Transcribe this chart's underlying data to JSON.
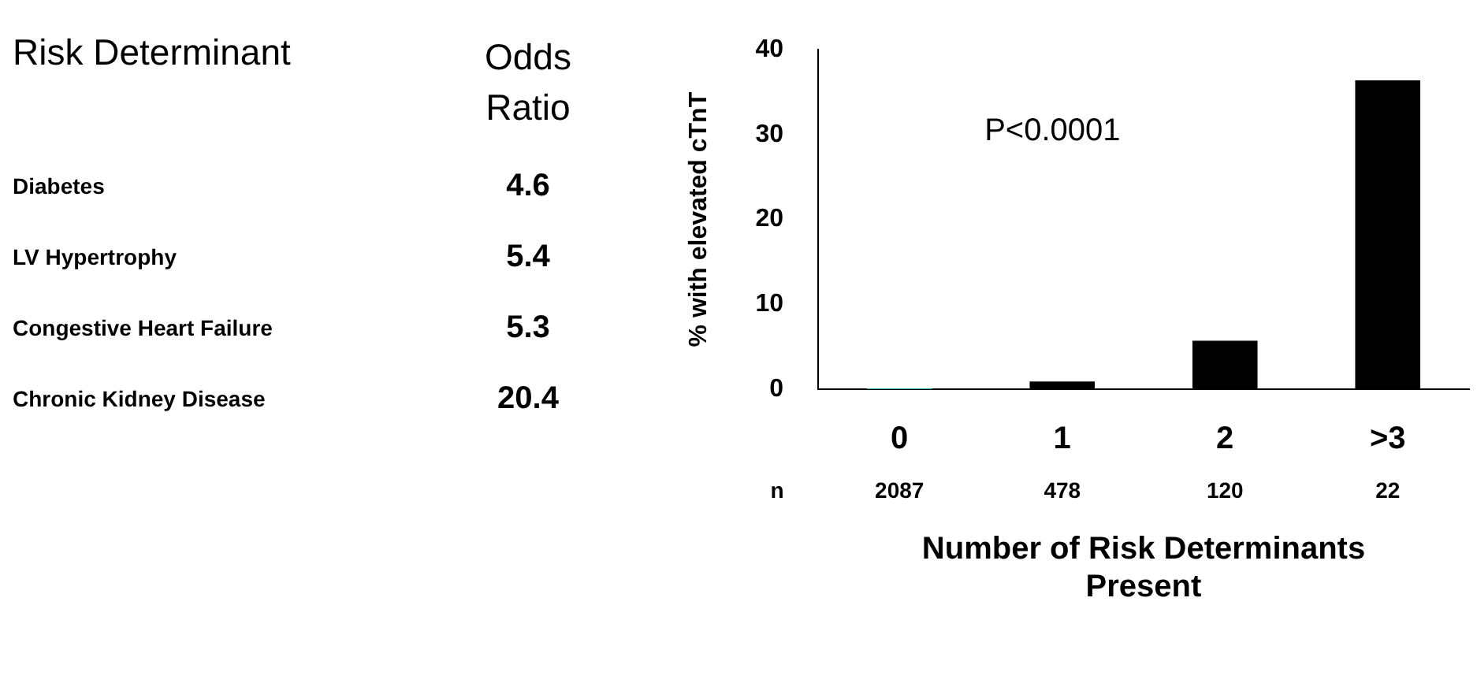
{
  "chart_data": [
    {
      "type": "other",
      "annotations": [
        "Risk Determinant",
        "Odds Ratio",
        "Diabetes",
        "4.6",
        "LV Hypertrophy",
        "5.4",
        "Congestive Heart Failure",
        "5.3",
        "Chronic Kidney Disease",
        "20.4"
      ]
    },
    {
      "type": "bar",
      "categories": [
        "0",
        "1",
        "2",
        ">3"
      ],
      "values": [
        0.1,
        0.9,
        5.7,
        36.4
      ],
      "colors": [
        "#2ab0b0",
        "#000000",
        "#000000",
        "#000000"
      ],
      "ylim": [
        0,
        40
      ],
      "yticks": [
        0,
        10,
        20,
        30,
        40
      ],
      "grid": false,
      "legend": false,
      "ylabel": "% with elevated cTnT",
      "xlabel": "Number of Risk Determinants Present",
      "annotations": [
        "P<0.0001",
        "n",
        "2087",
        "478",
        "120",
        "22"
      ]
    }
  ]
}
